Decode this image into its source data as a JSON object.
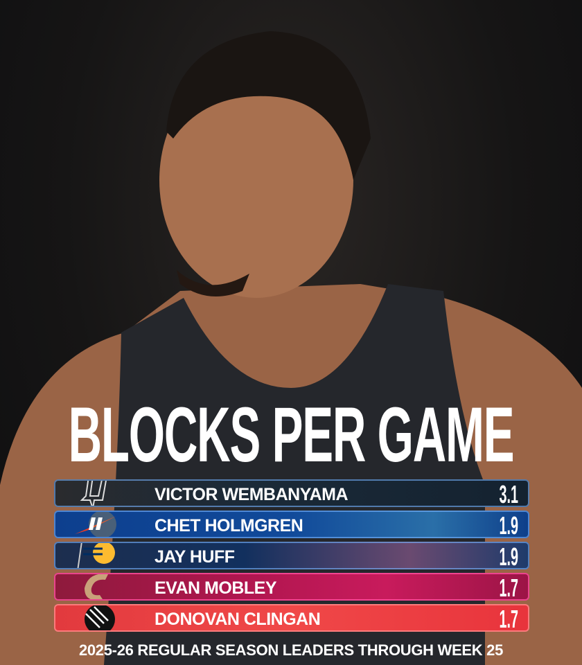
{
  "title": "BLOCKS PER GAME",
  "leaders": [
    {
      "player": "VICTOR WEMBANYAMA",
      "team_logo": "spurs-logo",
      "value": "3.1",
      "color": "#1d2a35"
    },
    {
      "player": "CHET HOLMGREN",
      "team_logo": "thunder-logo",
      "value": "1.9",
      "color": "#0e3f8a"
    },
    {
      "player": "JAY HUFF",
      "team_logo": "pacers-logo",
      "value": "1.9",
      "color": "#12305e"
    },
    {
      "player": "EVAN MOBLEY",
      "team_logo": "cavaliers-logo",
      "value": "1.7",
      "color": "#b0164f"
    },
    {
      "player": "DONOVAN CLINGAN",
      "team_logo": "trail-blazers-logo",
      "value": "1.7",
      "color": "#e8343c"
    }
  ],
  "footer": "2025-26 REGULAR SEASON LEADERS THROUGH WEEK 25"
}
